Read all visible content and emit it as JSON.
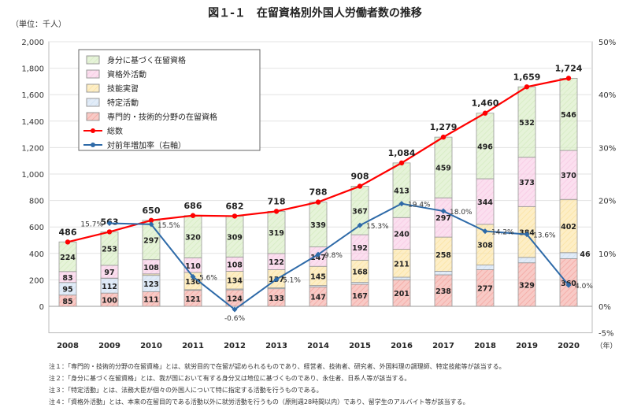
{
  "chart_data": {
    "type": "bar",
    "title": "図１-１　在留資格別外国人労働者数の推移",
    "unit_label": "（単位：千人）",
    "x_suffix": "（年）",
    "categories": [
      "2008",
      "2009",
      "2010",
      "2011",
      "2012",
      "2013",
      "2014",
      "2015",
      "2016",
      "2017",
      "2018",
      "2019",
      "2020"
    ],
    "ylim": [
      0,
      2000
    ],
    "yticks": [
      "0",
      "200",
      "400",
      "600",
      "800",
      "1,000",
      "1,200",
      "1,400",
      "1,600",
      "1,800",
      "2,000"
    ],
    "y2lim": [
      -5,
      50
    ],
    "y2ticks": [
      "-5%",
      "0%",
      "10%",
      "20%",
      "30%",
      "40%",
      "50%"
    ],
    "legend_position": "top-left",
    "series": [
      {
        "name": "専門的・技術的分野の在留資格",
        "color": "#f4a6a0",
        "values": [
          85,
          100,
          111,
          121,
          124,
          133,
          147,
          167,
          201,
          238,
          277,
          329,
          360
        ]
      },
      {
        "name": "特定活動",
        "color": "#cfe0f3",
        "values": [
          95,
          112,
          123,
          5,
          7,
          7,
          10,
          14,
          19,
          27,
          35,
          41,
          46
        ]
      },
      {
        "name": "技能実習",
        "color": "#fbe3a0",
        "values": [
          0,
          1,
          11,
          130,
          134,
          137,
          145,
          168,
          211,
          258,
          308,
          384,
          402
        ]
      },
      {
        "name": "資格外活動",
        "color": "#f8c9e4",
        "values": [
          83,
          97,
          108,
          110,
          108,
          122,
          147,
          192,
          240,
          297,
          344,
          373,
          370
        ]
      },
      {
        "name": "身分に基づく在留資格",
        "color": "#d5ebc0",
        "values": [
          224,
          253,
          297,
          320,
          309,
          319,
          339,
          367,
          413,
          459,
          496,
          532,
          546
        ]
      }
    ],
    "segment_labels_shown": {
      "特定活動": [
        "95",
        "112",
        "123",
        "",
        "",
        "",
        "",
        "",
        "",
        "",
        "",
        "",
        "46"
      ]
    },
    "total": {
      "name": "総数",
      "color": "#ff0000",
      "values": [
        486,
        563,
        650,
        686,
        682,
        718,
        788,
        908,
        1084,
        1279,
        1460,
        1659,
        1724
      ],
      "labels": [
        "486",
        "563",
        "650",
        "686",
        "682",
        "718",
        "788",
        "908",
        "1,084",
        "1,279",
        "1,460",
        "1,659",
        "1,724"
      ]
    },
    "growth": {
      "name": "対前年増加率（右軸）",
      "color": "#2e6aa8",
      "values": [
        null,
        15.7,
        15.5,
        5.6,
        -0.6,
        5.1,
        9.8,
        15.3,
        19.4,
        18.0,
        14.2,
        13.6,
        4.0
      ],
      "labels": [
        "",
        "15.7%",
        "15.5%",
        "5.6%",
        "-0.6%",
        "5.1%",
        "9.8%",
        "15.3%",
        "19.4%",
        "18.0%",
        "14.2%",
        "13.6%",
        "4.0%"
      ]
    },
    "legend_order": [
      "身分に基づく在留資格",
      "資格外活動",
      "技能実習",
      "特定活動",
      "専門的・技術的分野の在留資格",
      "総数",
      "対前年増加率（右軸）"
    ]
  },
  "notes": [
    "注１：「専門的・技術的分野の在留資格」とは、就労目的で在留が認められるものであり、経営者、技術者、研究者、外国料理の調理師、特定技能等が該当する。",
    "注２：「身分に基づく在留資格」とは、我が国において有する身分又は地位に基づくものであり、永住者、日系人等が該当する。",
    "注３：「特定活動」とは、法務大臣が個々の外国人について特に指定する活動を行うものである。",
    "注４：「資格外活動」とは、本来の在留目的である活動以外に就労活動を行うもの（原則週28時間以内）であり、留学生のアルバイト等が該当する。"
  ]
}
